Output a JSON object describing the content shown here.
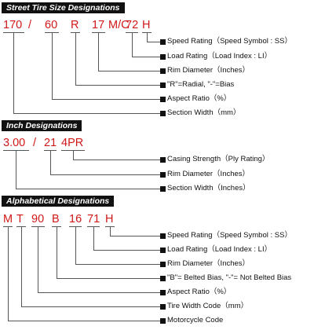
{
  "sections": [
    {
      "title": "Street Tire Size Designations",
      "codes": [
        "170",
        "/",
        "60",
        "R",
        "17",
        "M/C",
        "72",
        "H"
      ],
      "labels": [
        "Speed Rating（Speed Symbol : SS）",
        "Load Rating（Load Index : LI）",
        "Rim Diameter（Inches）",
        "\"R\"=Radial, \"-\"=Bias",
        "Aspect Ratio（%）",
        "Section Width（mm）"
      ]
    },
    {
      "title": "Inch Designations",
      "codes": [
        "3.00",
        "/",
        "21",
        "4PR"
      ],
      "labels": [
        "Casing Strength（Ply Rating）",
        "Rim Diameter（Inches）",
        "Section Width（Inches）"
      ]
    },
    {
      "title": "Alphabetical Designations",
      "codes": [
        "M",
        "T",
        "90",
        "B",
        "16",
        "71",
        "H"
      ],
      "labels": [
        "Speed Rating（Speed Symbol : SS）",
        "Load Rating（Load Index : LI）",
        "Rim Diameter（Inches）",
        "\"B\"= Belted Bias, \"-\"= Not Belted Bias",
        "Aspect Ratio（%）",
        "Tire Width Code（mm）",
        "Motorcycle Code"
      ]
    }
  ],
  "colors": {
    "code_red": "#d01818",
    "line_gray": "#555555",
    "header_bg": "#111111"
  }
}
